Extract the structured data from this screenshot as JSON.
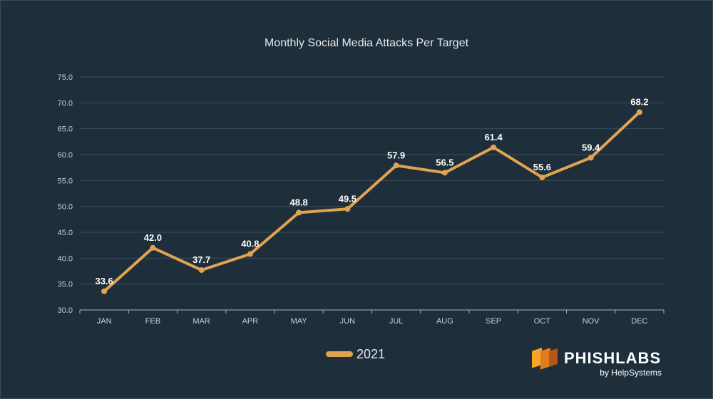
{
  "chart_data": {
    "type": "line",
    "title": "Monthly Social Media Attacks Per Target",
    "xlabel": "",
    "ylabel": "",
    "categories": [
      "JAN",
      "FEB",
      "MAR",
      "APR",
      "MAY",
      "JUN",
      "JUL",
      "AUG",
      "SEP",
      "OCT",
      "NOV",
      "DEC"
    ],
    "series": [
      {
        "name": "2021",
        "values": [
          33.6,
          42.0,
          37.7,
          40.8,
          48.8,
          49.5,
          57.9,
          56.5,
          61.4,
          55.6,
          59.4,
          68.2
        ],
        "color": "#e0a352"
      }
    ],
    "ylim": [
      30,
      75
    ],
    "yticks": [
      "30.0",
      "35.0",
      "40.0",
      "45.0",
      "50.0",
      "55.0",
      "60.0",
      "65.0",
      "70.0",
      "75.0"
    ],
    "data_labels": [
      "33.6",
      "42.0",
      "37.7",
      "40.8",
      "48.8",
      "49.5",
      "57.9",
      "56.5",
      "61.4",
      "55.6",
      "59.4",
      "68.2"
    ],
    "grid": true,
    "legend_position": "bottom-center"
  },
  "branding": {
    "logo_name": "PHISHLABS",
    "logo_sub": "by HelpSystems",
    "logo_icon": "stacked-cubes-icon",
    "logo_colors": [
      "#f5a623",
      "#e07b1f",
      "#b8561a"
    ]
  },
  "colors": {
    "background": "#1e2e3a",
    "grid": "#3d4d58",
    "line": "#e0a352"
  }
}
